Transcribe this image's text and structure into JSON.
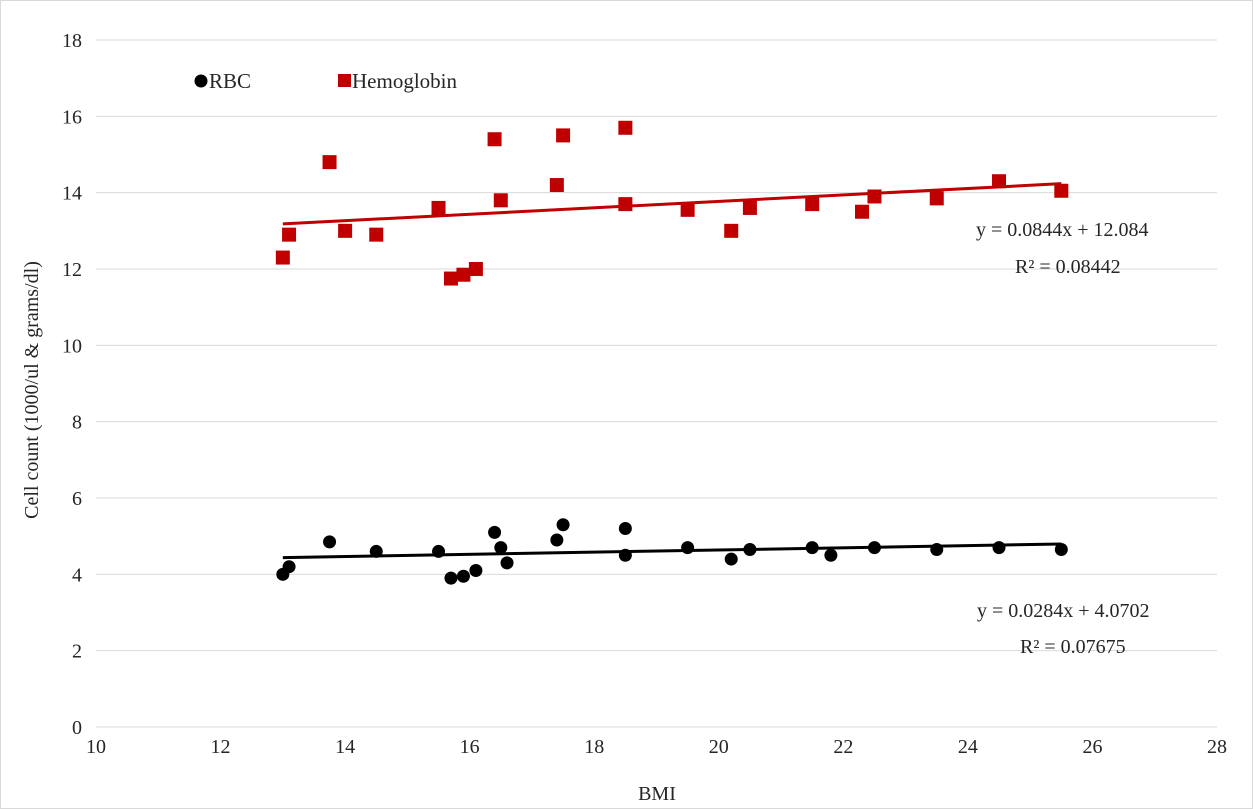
{
  "chart_data": {
    "type": "scatter",
    "title": "",
    "xlabel": "BMI",
    "ylabel": "Cell count  (1000/ul & grams/dl)",
    "xlim": [
      10,
      28
    ],
    "ylim": [
      0,
      18
    ],
    "xticks": [
      "10",
      "12",
      "14",
      "16",
      "18",
      "20",
      "22",
      "24",
      "26",
      "28"
    ],
    "yticks": [
      "0",
      "2",
      "4",
      "6",
      "8",
      "10",
      "12",
      "14",
      "16",
      "18"
    ],
    "grid": "horizontal",
    "legend_position": "top-left",
    "series": [
      {
        "name": "RBC",
        "marker": "circle",
        "color": "#000000",
        "points": [
          [
            13.0,
            4.0
          ],
          [
            13.1,
            4.2
          ],
          [
            13.75,
            4.85
          ],
          [
            14.5,
            4.6
          ],
          [
            15.5,
            4.6
          ],
          [
            15.7,
            3.9
          ],
          [
            15.9,
            3.95
          ],
          [
            16.1,
            4.1
          ],
          [
            16.4,
            5.1
          ],
          [
            16.5,
            4.7
          ],
          [
            16.6,
            4.3
          ],
          [
            17.4,
            4.9
          ],
          [
            17.5,
            5.3
          ],
          [
            18.5,
            5.2
          ],
          [
            18.5,
            4.5
          ],
          [
            19.5,
            4.7
          ],
          [
            20.2,
            4.4
          ],
          [
            20.5,
            4.65
          ],
          [
            21.5,
            4.7
          ],
          [
            21.8,
            4.5
          ],
          [
            22.5,
            4.7
          ],
          [
            23.5,
            4.65
          ],
          [
            24.5,
            4.7
          ],
          [
            25.5,
            4.65
          ]
        ],
        "trendline": {
          "slope": 0.0284,
          "intercept": 4.0702,
          "x_range": [
            13.0,
            25.5
          ]
        },
        "equation": "y = 0.0284x + 4.0702",
        "r2": "R² = 0.07675"
      },
      {
        "name": "Hemoglobin",
        "marker": "square",
        "color": "#c00000",
        "points": [
          [
            13.0,
            12.3
          ],
          [
            13.1,
            12.9
          ],
          [
            13.75,
            14.8
          ],
          [
            14.0,
            13.0
          ],
          [
            14.5,
            12.9
          ],
          [
            15.5,
            13.6
          ],
          [
            15.7,
            11.75
          ],
          [
            15.9,
            11.85
          ],
          [
            16.1,
            12.0
          ],
          [
            16.4,
            15.4
          ],
          [
            16.5,
            13.8
          ],
          [
            17.4,
            14.2
          ],
          [
            17.5,
            15.5
          ],
          [
            18.5,
            15.7
          ],
          [
            18.5,
            13.7
          ],
          [
            19.5,
            13.55
          ],
          [
            20.2,
            13.0
          ],
          [
            20.5,
            13.6
          ],
          [
            21.5,
            13.7
          ],
          [
            22.3,
            13.5
          ],
          [
            22.5,
            13.9
          ],
          [
            23.5,
            13.85
          ],
          [
            24.5,
            14.3
          ],
          [
            25.5,
            14.05
          ]
        ],
        "trendline": {
          "slope": 0.0844,
          "intercept": 12.084,
          "x_range": [
            13.0,
            25.5
          ]
        },
        "equation": "y = 0.0844x + 12.084",
        "r2": "R² = 0.08442"
      }
    ]
  },
  "colors": {
    "rbc": "#000000",
    "hemoglobin": "#c00000",
    "grid": "#d9d9d9",
    "text": "#262626"
  }
}
